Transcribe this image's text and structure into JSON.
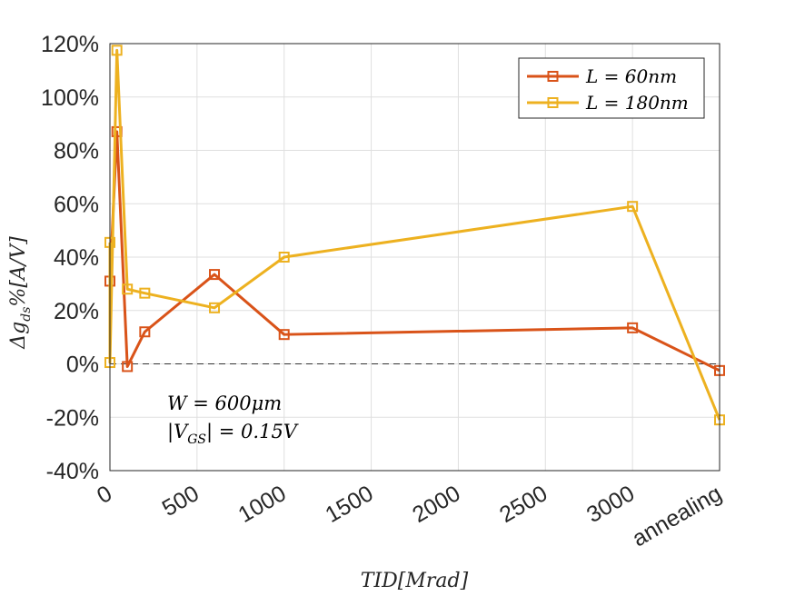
{
  "chart_data": {
    "type": "line",
    "xlabel": "TID[Mrad]",
    "ylabel": "Δg_ds%[A/V]",
    "x_ticks": [
      "0",
      "500",
      "1000",
      "1500",
      "2000",
      "2500",
      "3000",
      "annealing"
    ],
    "x_tick_values": [
      0,
      500,
      1000,
      1500,
      2000,
      2500,
      3000,
      3500
    ],
    "xlim": [
      0,
      3500
    ],
    "y_ticks": [
      "-40%",
      "-20%",
      "0%",
      "20%",
      "40%",
      "60%",
      "80%",
      "100%",
      "120%"
    ],
    "y_tick_values": [
      -40,
      -20,
      0,
      20,
      40,
      60,
      80,
      100,
      120
    ],
    "ylim": [
      -40,
      120
    ],
    "grid": true,
    "legend_position": "top-right",
    "reference_line": {
      "y": 0,
      "style": "dashed"
    },
    "annotations": [
      "W = 600μm",
      "|V_GS| = 0.15V"
    ],
    "series": [
      {
        "name": "L = 60nm",
        "color": "#d95319",
        "marker": "square",
        "x": [
          0,
          40,
          100,
          200,
          600,
          1000,
          3000,
          3500
        ],
        "y": [
          31,
          87,
          -1,
          12,
          33.5,
          11,
          13.5,
          -2.5
        ]
      },
      {
        "name": "L = 180nm",
        "color": "#edb120",
        "marker": "square",
        "x": [
          0,
          0,
          40,
          100,
          200,
          600,
          1000,
          3000,
          3500
        ],
        "y": [
          45.5,
          0.5,
          117.5,
          28,
          26.5,
          21,
          40,
          59,
          -21
        ]
      }
    ]
  }
}
